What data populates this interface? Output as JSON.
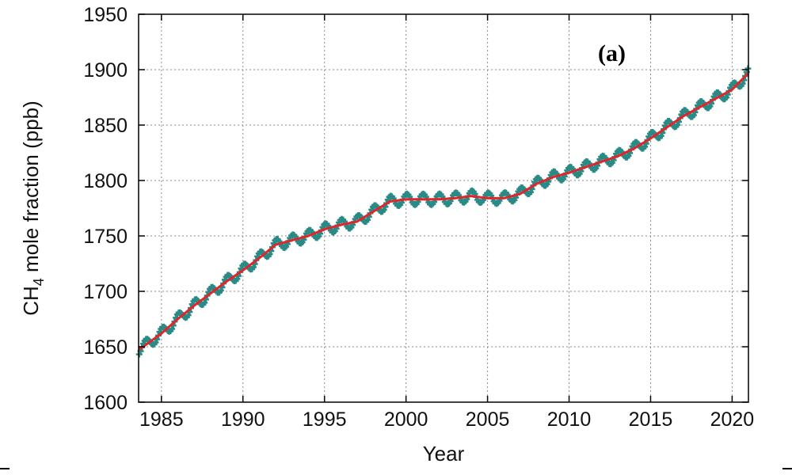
{
  "chart_data": {
    "type": "line",
    "title": "",
    "panel_label": "(a)",
    "xlabel": "Year",
    "ylabel_main": "CH",
    "ylabel_sub": "4",
    "ylabel_rest": " mole fraction (ppb)",
    "xlim": [
      1983.6,
      2021.0
    ],
    "ylim": [
      1600,
      1950
    ],
    "x_ticks": [
      1985,
      1990,
      1995,
      2000,
      2005,
      2010,
      2015,
      2020
    ],
    "x_tick_labels": [
      "1985",
      "1990",
      "1995",
      "2000",
      "2005",
      "2010",
      "2015",
      "2020"
    ],
    "y_ticks": [
      1600,
      1650,
      1700,
      1750,
      1800,
      1850,
      1900,
      1950
    ],
    "y_tick_labels": [
      "1600",
      "1650",
      "1700",
      "1750",
      "1800",
      "1850",
      "1900",
      "1950"
    ],
    "grid": true,
    "colors": {
      "monthly": "#2a8a86",
      "trend": "#e0262b"
    },
    "seasonal_amplitude_ppb": 5,
    "series": [
      {
        "kind": "monthly",
        "values_note": "",
        "x": [],
        "y": []
      },
      {
        "kind": "trend",
        "x": [
          1983.6,
          1985,
          1986,
          1987,
          1988,
          1989,
          1990,
          1991,
          1992,
          1993,
          1994,
          1995,
          1996,
          1997,
          1998,
          1999,
          2000,
          2001,
          2002,
          2003,
          2004,
          2005,
          2006,
          2007,
          2008,
          2009,
          2010,
          2011,
          2012,
          2013,
          2014,
          2015,
          2016,
          2017,
          2018,
          2019,
          2020,
          2021.0
        ],
        "y": [
          1647,
          1662,
          1675,
          1687,
          1698,
          1709,
          1719,
          1730,
          1742,
          1746,
          1750,
          1756,
          1760,
          1763,
          1772,
          1781,
          1783,
          1783,
          1783,
          1784,
          1786,
          1784,
          1784,
          1788,
          1797,
          1803,
          1807,
          1812,
          1817,
          1822,
          1829,
          1838,
          1848,
          1858,
          1866,
          1874,
          1882,
          1897
        ]
      }
    ]
  }
}
